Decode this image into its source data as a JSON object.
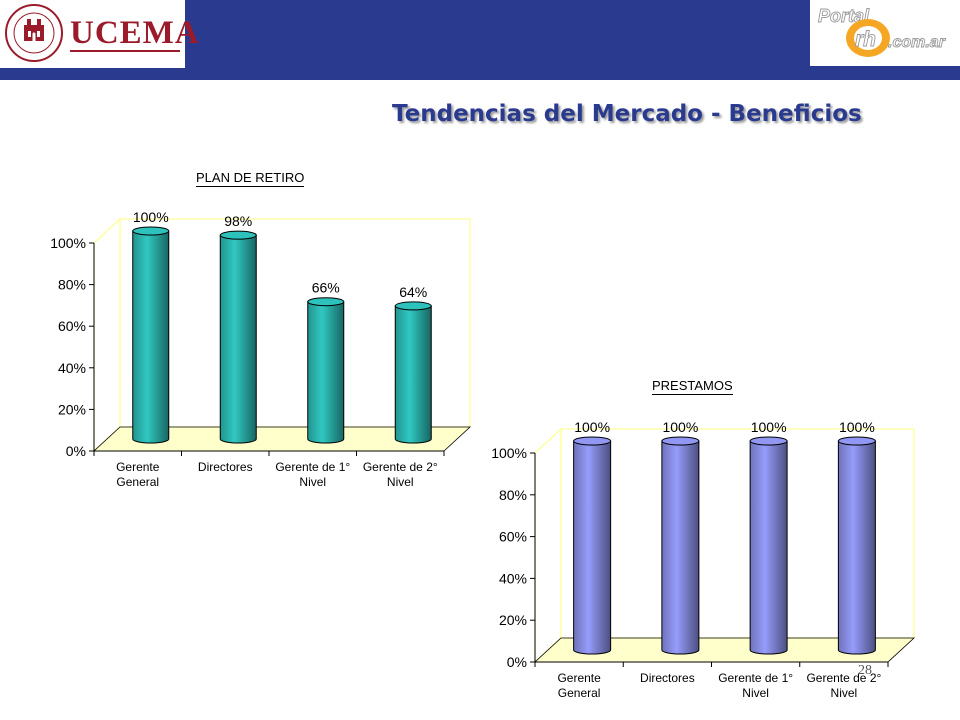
{
  "header": {
    "logo_left_text": "UCEMA",
    "seal_text": "UNIVERSIDAD DEL CEMA",
    "seal_year": "MCMLXXVIII",
    "logo_right_text_top": "Portal",
    "logo_right_text_mid": "rh",
    "logo_right_text_bottom": ".com.ar"
  },
  "slide": {
    "title": "Tendencias del Mercado - Beneficios",
    "page_number": "28"
  },
  "colors": {
    "header_bg": "#2a3a8f",
    "title": "#2a3a8f",
    "plan_bar": "#2cb9b3",
    "prestamos_bar": "#8b90e8",
    "floor": "#ffffcc"
  },
  "chart_data": [
    {
      "type": "bar",
      "title": "PLAN DE RETIRO",
      "categories": [
        [
          "Gerente",
          "General"
        ],
        [
          "Directores"
        ],
        [
          "Gerente de 1°",
          "Nivel"
        ],
        [
          "Gerente de 2°",
          "Nivel"
        ]
      ],
      "values": [
        100,
        98,
        66,
        64
      ],
      "data_labels": [
        "100%",
        "98%",
        "66%",
        "64%"
      ],
      "yticks": [
        "0%",
        "20%",
        "40%",
        "60%",
        "80%",
        "100%"
      ],
      "ylim": [
        0,
        100
      ],
      "style": "3d-cylinder"
    },
    {
      "type": "bar",
      "title": "PRESTAMOS",
      "categories": [
        [
          "Gerente",
          "General"
        ],
        [
          "Directores"
        ],
        [
          "Gerente de 1°",
          "Nivel"
        ],
        [
          "Gerente de 2°",
          "Nivel"
        ]
      ],
      "values": [
        100,
        100,
        100,
        100
      ],
      "data_labels": [
        "100%",
        "100%",
        "100%",
        "100%"
      ],
      "yticks": [
        "0%",
        "20%",
        "40%",
        "60%",
        "80%",
        "100%"
      ],
      "ylim": [
        0,
        100
      ],
      "style": "3d-cylinder"
    }
  ]
}
